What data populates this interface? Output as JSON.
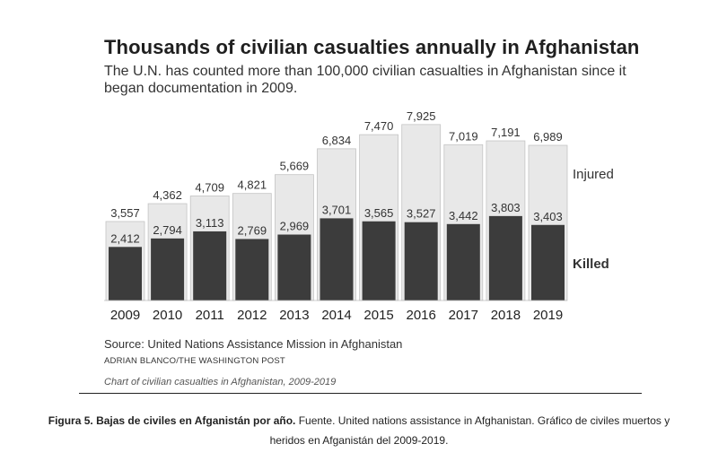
{
  "chart_data": {
    "type": "bar",
    "stacked": true,
    "title": "Thousands of civilian casualties annually in Afghanistan",
    "subtitle": "The U.N. has counted more than 100,000 civilian casualties in Afghanistan since it began documentation in 2009.",
    "categories": [
      "2009",
      "2010",
      "2011",
      "2012",
      "2013",
      "2014",
      "2015",
      "2016",
      "2017",
      "2018",
      "2019"
    ],
    "series": [
      {
        "name": "Killed",
        "color": "#3c3c3c",
        "values": [
          2412,
          2794,
          3113,
          2769,
          2969,
          3701,
          3565,
          3527,
          3442,
          3803,
          3403
        ],
        "labels": [
          "2,412",
          "2,794",
          "3,113",
          "2,769",
          "2,969",
          "3,701",
          "3,565",
          "3,527",
          "3,442",
          "3,803",
          "3,403"
        ]
      },
      {
        "name": "Injured",
        "color": "#e8e8e8",
        "values": [
          3557,
          4362,
          4709,
          4821,
          5669,
          6834,
          7470,
          7925,
          7019,
          7191,
          6989
        ],
        "labels": [
          "3,557",
          "4,362",
          "4,709",
          "4,821",
          "5,669",
          "6,834",
          "7,470",
          "7,925",
          "7,019",
          "7,191",
          "6,989"
        ]
      }
    ],
    "legend": [
      "Injured",
      "Killed"
    ],
    "ylim": [
      0,
      12000
    ],
    "grid": false
  },
  "source": "Source: United Nations Assistance Mission in Afghanistan",
  "credit": "ADRIAN BLANCO/THE WASHINGTON POST",
  "image_caption": "Chart of civilian casualties in Afghanistan, 2009-2019",
  "figure_caption": {
    "label": "Figura 5. Bajas de civiles en Afganistán por año.",
    "text": " Fuente. United nations assistance in Afghanistan. Gráfico de civiles muertos y heridos en Afganistán del 2009-2019."
  }
}
